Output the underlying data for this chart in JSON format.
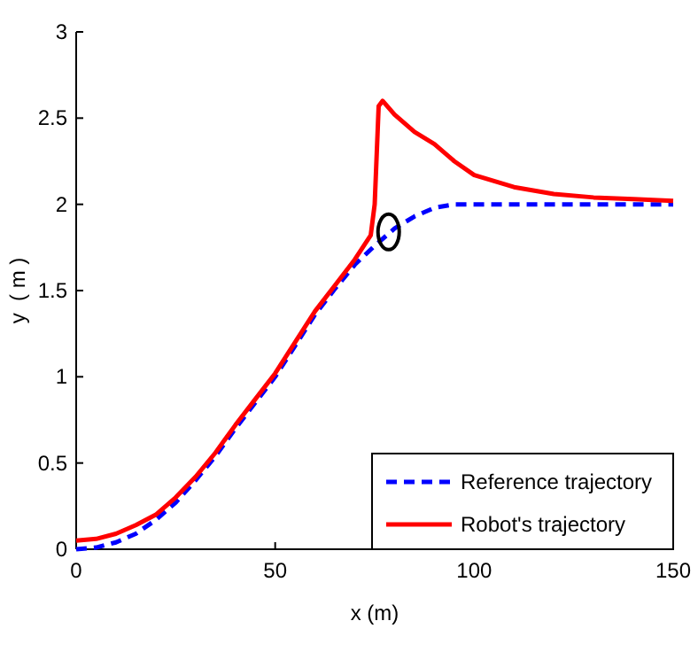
{
  "chart_data": {
    "type": "line",
    "xlabel": "x (m)",
    "ylabel": "y  ( m )",
    "xlim": [
      0,
      150
    ],
    "ylim": [
      0,
      3
    ],
    "xticks": [
      0,
      50,
      100,
      150
    ],
    "yticks": [
      0,
      0.5,
      1,
      1.5,
      2,
      2.5,
      3
    ],
    "legend": "bottom right",
    "grid": false,
    "series": [
      {
        "name": "Reference trajectory",
        "color": "#0000ff",
        "line_style": "dashed",
        "x": [
          0,
          5,
          10,
          15,
          20,
          25,
          30,
          35,
          40,
          45,
          50,
          55,
          60,
          65,
          70,
          75,
          80,
          85,
          90,
          95,
          100,
          150
        ],
        "values": [
          0,
          0.01,
          0.04,
          0.09,
          0.17,
          0.27,
          0.4,
          0.54,
          0.7,
          0.85,
          1.0,
          1.18,
          1.36,
          1.51,
          1.65,
          1.76,
          1.86,
          1.93,
          1.98,
          2.0,
          2.0,
          2.0
        ]
      },
      {
        "name": "Robot's trajectory",
        "color": "#ff0000",
        "line_style": "solid",
        "x": [
          0,
          5,
          10,
          15,
          20,
          25,
          30,
          35,
          40,
          45,
          50,
          55,
          60,
          65,
          70,
          74,
          75,
          76,
          77,
          80,
          85,
          90,
          95,
          100,
          110,
          120,
          130,
          140,
          150
        ],
        "values": [
          0.05,
          0.06,
          0.09,
          0.14,
          0.2,
          0.3,
          0.42,
          0.56,
          0.72,
          0.87,
          1.02,
          1.2,
          1.38,
          1.53,
          1.68,
          1.82,
          2.0,
          2.57,
          2.6,
          2.52,
          2.42,
          2.35,
          2.25,
          2.17,
          2.1,
          2.06,
          2.04,
          2.03,
          2.02
        ]
      }
    ]
  }
}
